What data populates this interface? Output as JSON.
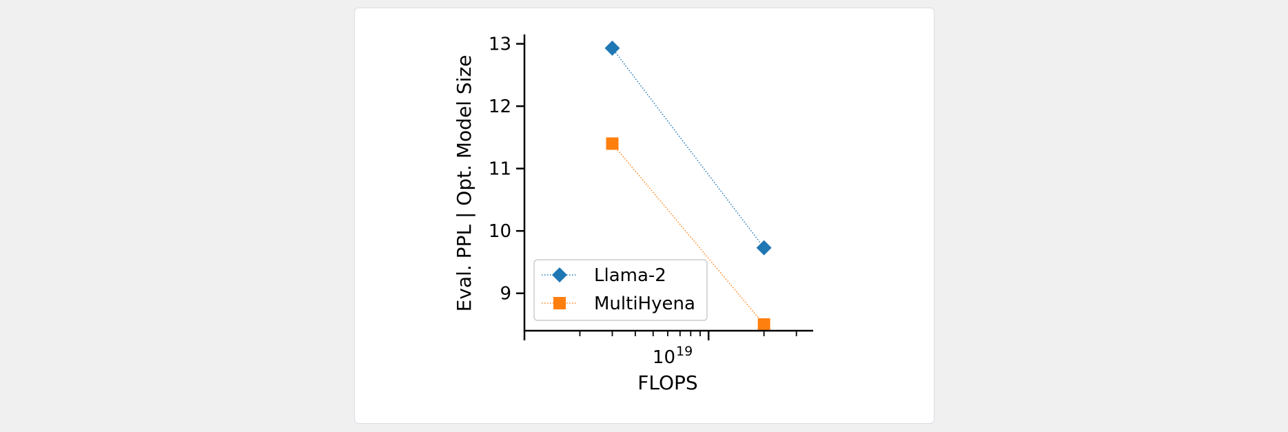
{
  "chart_data": {
    "type": "line",
    "x_scale": "log",
    "x": [
      3e+18,
      2e+19
    ],
    "xlim": [
      1e+18,
      3.7e+19
    ],
    "ylim": [
      8.4,
      13.15
    ],
    "x_major_tick": 1e+19,
    "x_major_tick_label": {
      "base": "10",
      "exponent": "19"
    },
    "y_ticks": [
      9,
      10,
      11,
      12,
      13
    ],
    "y_tick_labels": [
      "9",
      "10",
      "11",
      "12",
      "13"
    ],
    "xlabel": "FLOPS",
    "ylabel": "Eval. PPL | Opt. Model Size",
    "legend_position": "lower-left",
    "series": [
      {
        "name": "Llama-2",
        "values": [
          12.93,
          9.73
        ],
        "color": "#1f77b4",
        "marker": "diamond"
      },
      {
        "name": "MultiHyena",
        "values": [
          11.4,
          8.5
        ],
        "color": "#ff7f0e",
        "marker": "square"
      }
    ]
  }
}
